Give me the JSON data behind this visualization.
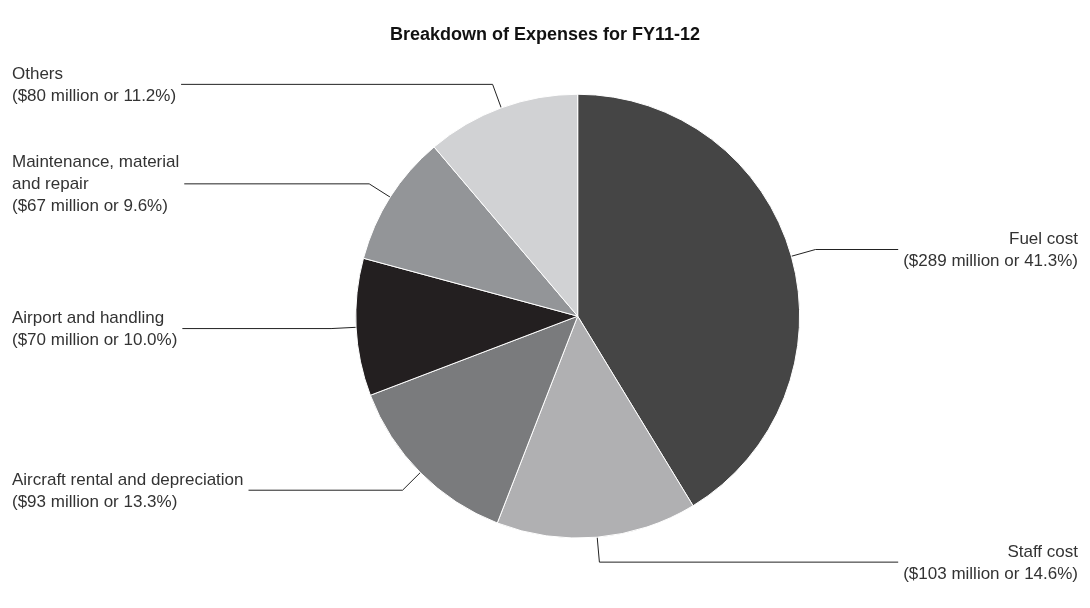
{
  "chart_data": {
    "type": "pie",
    "title": "Breakdown of Expenses for FY11-12",
    "categories": [
      "Fuel cost",
      "Staff cost",
      "Aircraft rental and depreciation",
      "Airport and handling",
      "Maintenance, material\nand repair",
      "Others"
    ],
    "values": [
      41.3,
      14.6,
      13.3,
      10.0,
      9.6,
      11.2
    ],
    "value_labels": [
      "($289 million or 41.3%)",
      "($103 million or 14.6%)",
      "($93 million or 13.3%)",
      "($70 million or 10.0%)",
      "($67 million or 9.6%)",
      "($80 million or 11.2%)"
    ],
    "colors": [
      "#454545",
      "#b0b0b2",
      "#7a7b7d",
      "#231f20",
      "#939598",
      "#d1d2d4"
    ],
    "legend": false
  }
}
